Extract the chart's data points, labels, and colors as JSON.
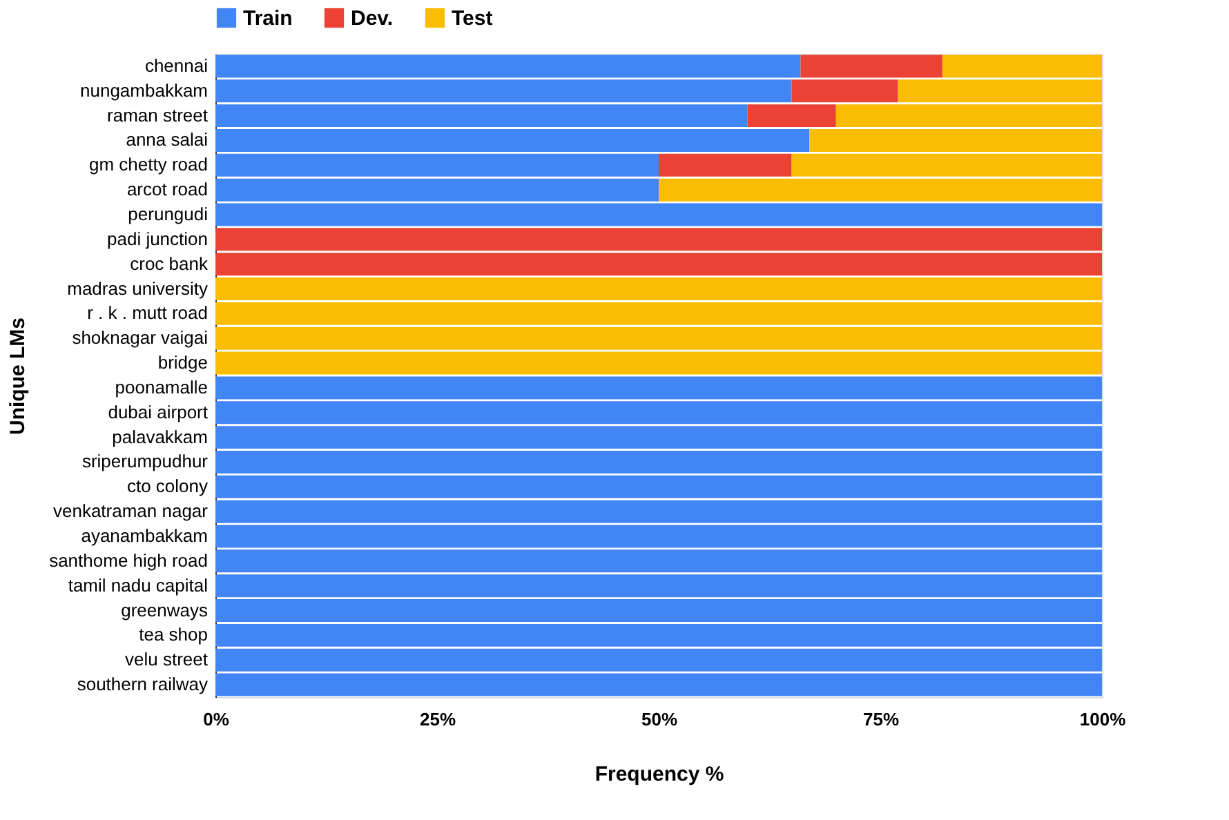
{
  "chart_data": {
    "type": "bar",
    "orientation": "horizontal",
    "stacked": true,
    "xlabel": "Frequency %",
    "ylabel": "Unique LMs",
    "categories": [
      "chennai",
      "nungambakkam",
      "raman street",
      "anna salai",
      "gm chetty road",
      "arcot road",
      "perungudi",
      "padi junction",
      "croc bank",
      "madras university",
      "r . k . mutt road",
      "shoknagar vaigai",
      "bridge",
      "poonamalle",
      "dubai airport",
      "palavakkam",
      "sriperumpudhur",
      "cto colony",
      "venkatraman nagar",
      "ayanambakkam",
      "santhome high road",
      "tamil nadu capital",
      "greenways",
      "tea shop",
      "velu street",
      "southern railway"
    ],
    "series": [
      {
        "name": "Train",
        "color": "#4285f4",
        "values": [
          66,
          65,
          60,
          67,
          50,
          50,
          100,
          0,
          0,
          0,
          0,
          0,
          0,
          100,
          100,
          100,
          100,
          100,
          100,
          100,
          100,
          100,
          100,
          100,
          100,
          100
        ]
      },
      {
        "name": "Dev.",
        "color": "#ea4335",
        "values": [
          16,
          12,
          10,
          0,
          15,
          0,
          0,
          100,
          100,
          0,
          0,
          0,
          0,
          0,
          0,
          0,
          0,
          0,
          0,
          0,
          0,
          0,
          0,
          0,
          0,
          0
        ]
      },
      {
        "name": "Test",
        "color": "#fbbc04",
        "values": [
          18,
          23,
          30,
          33,
          35,
          50,
          0,
          0,
          0,
          100,
          100,
          100,
          100,
          0,
          0,
          0,
          0,
          0,
          0,
          0,
          0,
          0,
          0,
          0,
          0,
          0
        ]
      }
    ],
    "xlim": [
      0,
      100
    ],
    "xticks": [
      {
        "value": 0,
        "label": "0%"
      },
      {
        "value": 25,
        "label": "25%"
      },
      {
        "value": 50,
        "label": "50%"
      },
      {
        "value": 75,
        "label": "75%"
      },
      {
        "value": 100,
        "label": "100%"
      }
    ],
    "legend": "top",
    "grid": false
  }
}
